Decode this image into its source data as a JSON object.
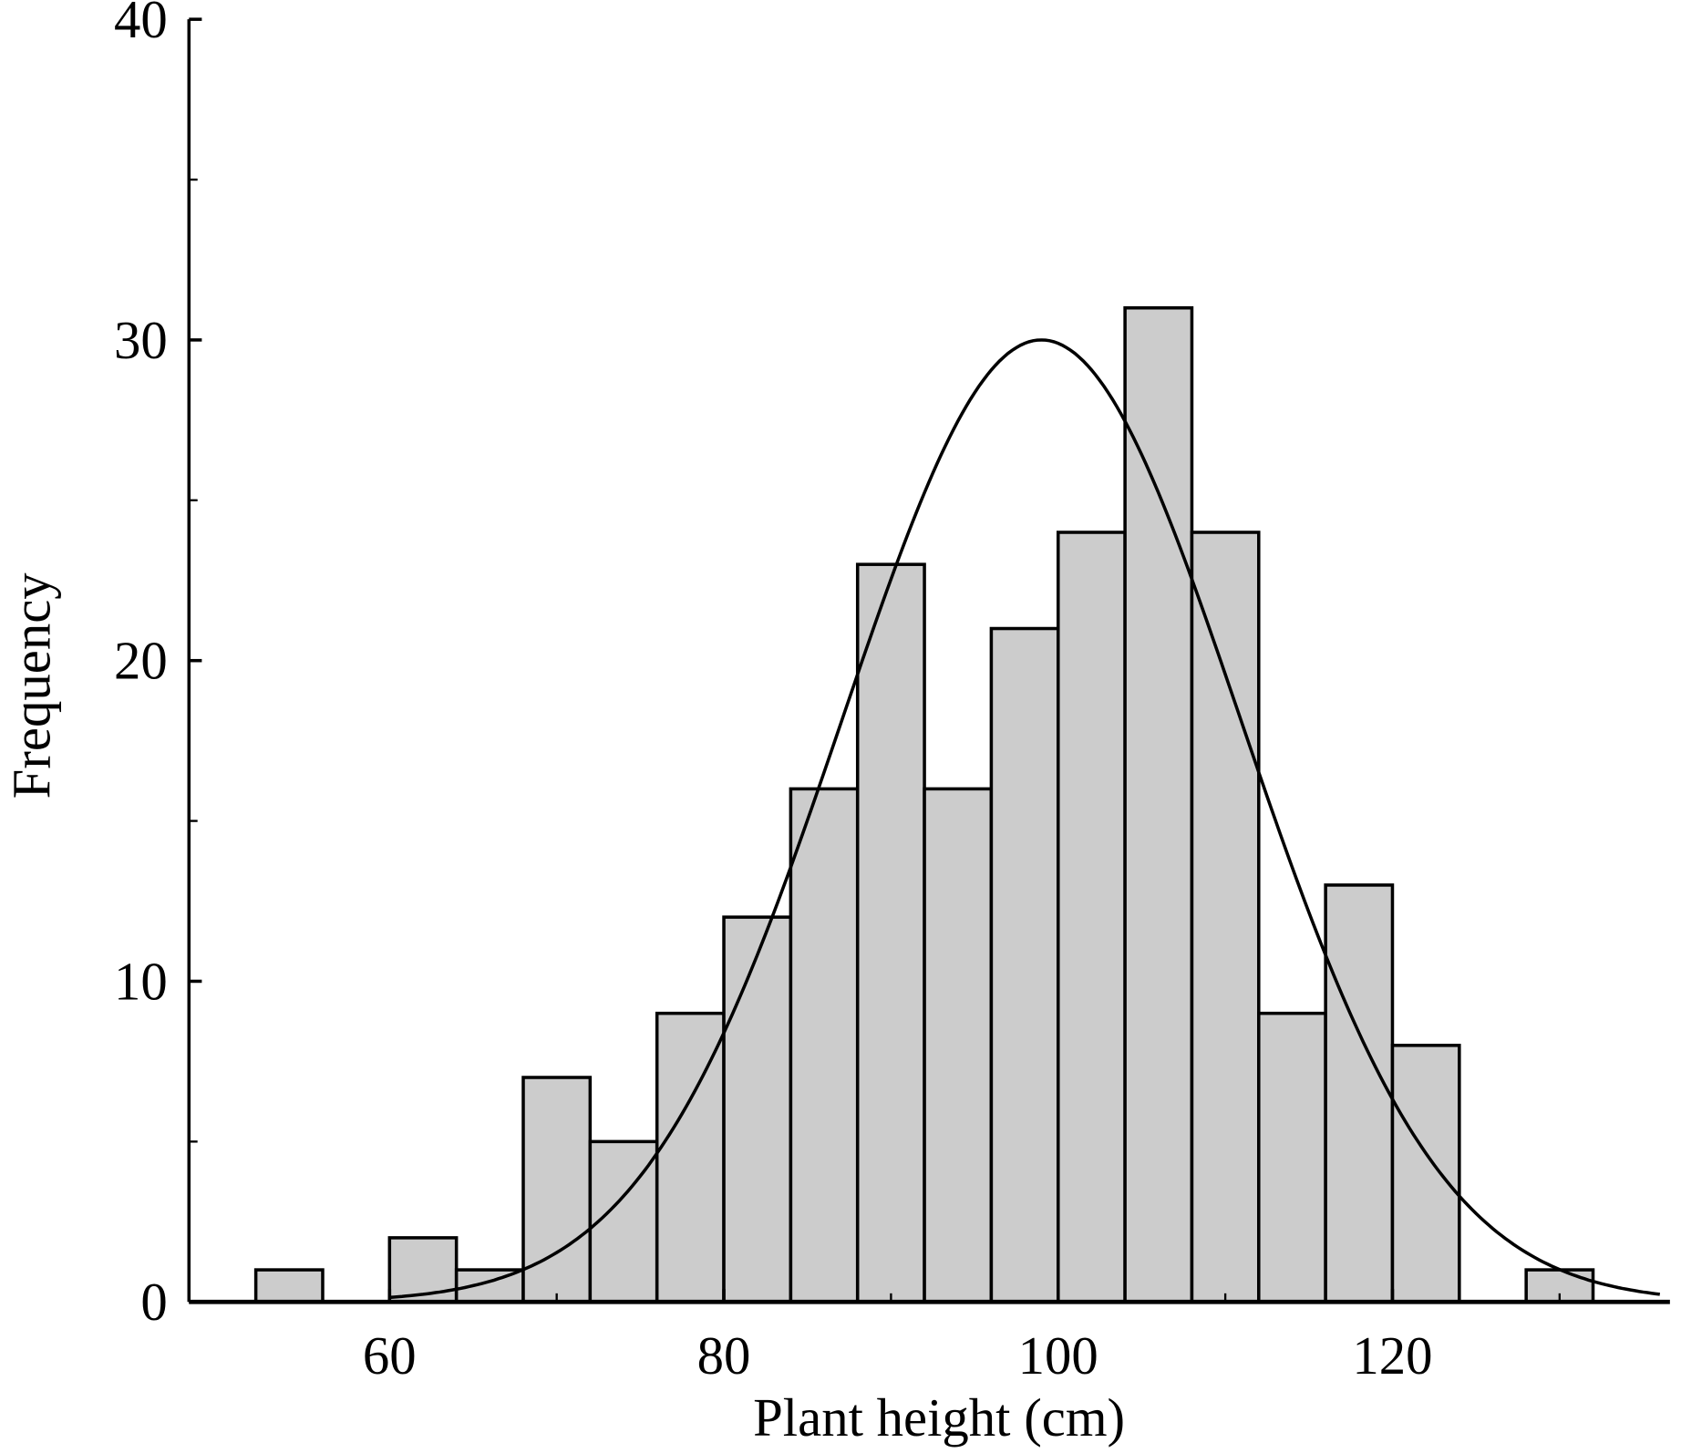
{
  "chart_data": {
    "type": "bar",
    "subtype": "histogram-with-normal-fit",
    "xlabel": "Plant height (cm)",
    "ylabel": "Frequency",
    "xlim": [
      48,
      136.6
    ],
    "ylim": [
      0,
      40
    ],
    "xticks": [
      60,
      80,
      100,
      120
    ],
    "yticks": [
      0,
      10,
      20,
      30,
      40
    ],
    "x_minor_ticks": [
      70,
      90,
      110,
      130
    ],
    "y_minor_ticks": [
      5,
      15,
      25,
      35
    ],
    "bin_edges": [
      52,
      56,
      60,
      64,
      68,
      72,
      76,
      80,
      84,
      88,
      92,
      96,
      100,
      104,
      108,
      112,
      116,
      120,
      124,
      128,
      132
    ],
    "values": [
      1,
      0,
      2,
      1,
      7,
      5,
      9,
      12,
      16,
      23,
      16,
      21,
      24,
      31,
      24,
      9,
      13,
      8,
      0,
      1
    ],
    "normal_fit": {
      "mean": 99,
      "sd": 11.9,
      "peak": 30
    },
    "grid": false,
    "legend": "none",
    "colors": {
      "bar_fill": "#cccccc",
      "bar_edge": "#000000",
      "curve": "#000000"
    }
  }
}
